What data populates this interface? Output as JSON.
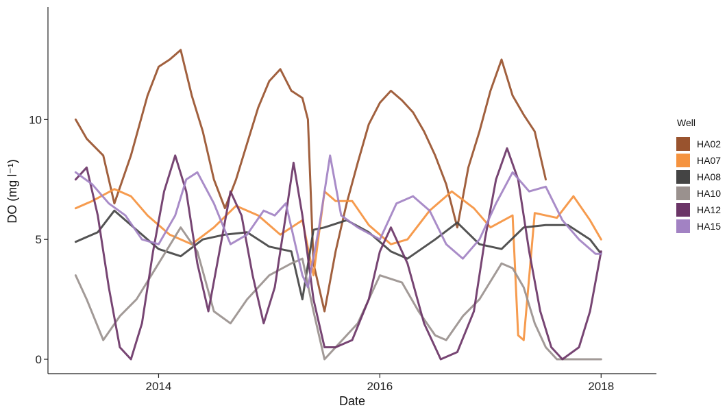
{
  "chart_data": {
    "type": "line",
    "xlabel": "Date",
    "ylabel": "DO (mg l⁻¹)",
    "xlim": [
      2013.0,
      2018.5
    ],
    "ylim": [
      -0.6,
      14.7
    ],
    "xticks": [
      2014,
      2016,
      2018
    ],
    "xtick_labels": [
      "2014",
      "2016",
      "2018"
    ],
    "yticks": [
      0,
      5,
      10
    ],
    "ytick_labels": [
      "0",
      "5",
      "10"
    ],
    "grid": false,
    "legend": {
      "title": "Well",
      "position": "right"
    },
    "series": [
      {
        "name": "HA02",
        "color": "#99532e",
        "x": [
          2013.25,
          2013.35,
          2013.5,
          2013.6,
          2013.75,
          2013.9,
          2014.0,
          2014.1,
          2014.2,
          2014.3,
          2014.4,
          2014.5,
          2014.6,
          2014.7,
          2014.8,
          2014.9,
          2015.0,
          2015.1,
          2015.2,
          2015.3,
          2015.35,
          2015.4,
          2015.5,
          2015.6,
          2015.7,
          2015.8,
          2015.9,
          2016.0,
          2016.1,
          2016.2,
          2016.3,
          2016.4,
          2016.5,
          2016.6,
          2016.7,
          2016.8,
          2016.9,
          2017.0,
          2017.1,
          2017.2,
          2017.3,
          2017.4,
          2017.5
        ],
        "y": [
          10.0,
          9.2,
          8.5,
          6.5,
          8.5,
          11.0,
          12.2,
          12.5,
          12.9,
          11.0,
          9.5,
          7.5,
          6.3,
          7.5,
          9.0,
          10.5,
          11.6,
          12.1,
          11.2,
          10.9,
          10.0,
          4.0,
          2.0,
          4.5,
          6.5,
          8.2,
          9.8,
          10.7,
          11.2,
          10.8,
          10.3,
          9.5,
          8.5,
          7.3,
          5.5,
          8.0,
          9.5,
          11.2,
          12.5,
          11.0,
          10.2,
          9.5,
          7.5
        ]
      },
      {
        "name": "HA07",
        "color": "#f5933f",
        "x": [
          2013.25,
          2013.4,
          2013.6,
          2013.75,
          2013.9,
          2014.1,
          2014.3,
          2014.5,
          2014.7,
          2014.9,
          2015.1,
          2015.2,
          2015.3,
          2015.4,
          2015.5,
          2015.6,
          2015.75,
          2015.9,
          2016.1,
          2016.25,
          2016.45,
          2016.65,
          2016.85,
          2017.0,
          2017.2,
          2017.25,
          2017.3,
          2017.4,
          2017.5,
          2017.6,
          2017.75,
          2017.9,
          2018.0
        ],
        "y": [
          6.3,
          6.6,
          7.1,
          6.8,
          6.0,
          5.2,
          4.8,
          5.5,
          6.4,
          6.0,
          5.2,
          5.5,
          5.8,
          3.5,
          7.0,
          6.6,
          6.6,
          5.6,
          4.8,
          5.0,
          6.2,
          7.0,
          6.3,
          5.5,
          6.0,
          1.0,
          0.8,
          6.1,
          6.0,
          5.9,
          6.8,
          5.8,
          5.0
        ]
      },
      {
        "name": "HA08",
        "color": "#444444",
        "x": [
          2013.25,
          2013.45,
          2013.6,
          2013.8,
          2014.0,
          2014.2,
          2014.4,
          2014.6,
          2014.8,
          2015.0,
          2015.2,
          2015.3,
          2015.4,
          2015.5,
          2015.7,
          2015.9,
          2016.1,
          2016.25,
          2016.5,
          2016.7,
          2016.9,
          2017.1,
          2017.3,
          2017.5,
          2017.7,
          2017.9,
          2018.0
        ],
        "y": [
          4.9,
          5.3,
          6.2,
          5.4,
          4.6,
          4.3,
          5.0,
          5.2,
          5.3,
          4.7,
          4.5,
          2.5,
          5.4,
          5.5,
          5.8,
          5.3,
          4.5,
          4.2,
          5.0,
          5.7,
          4.8,
          4.6,
          5.5,
          5.6,
          5.6,
          5.0,
          4.4
        ]
      },
      {
        "name": "HA10",
        "color": "#9a918e",
        "x": [
          2013.25,
          2013.35,
          2013.5,
          2013.65,
          2013.8,
          2014.0,
          2014.2,
          2014.35,
          2014.5,
          2014.65,
          2014.8,
          2015.0,
          2015.2,
          2015.3,
          2015.4,
          2015.5,
          2015.6,
          2015.8,
          2016.0,
          2016.2,
          2016.35,
          2016.5,
          2016.6,
          2016.75,
          2016.9,
          2017.1,
          2017.2,
          2017.3,
          2017.4,
          2017.5,
          2017.6,
          2017.75,
          2017.9,
          2018.0
        ],
        "y": [
          3.5,
          2.5,
          0.8,
          1.8,
          2.5,
          4.0,
          5.5,
          4.5,
          2.0,
          1.5,
          2.5,
          3.5,
          4.0,
          4.2,
          2.0,
          0.0,
          0.5,
          1.5,
          3.5,
          3.2,
          2.0,
          1.0,
          0.8,
          1.8,
          2.5,
          4.0,
          3.8,
          3.0,
          1.5,
          0.5,
          0.0,
          0.0,
          0.0,
          0.0
        ]
      },
      {
        "name": "HA12",
        "color": "#6b3567",
        "x": [
          2013.25,
          2013.35,
          2013.45,
          2013.55,
          2013.65,
          2013.75,
          2013.85,
          2013.95,
          2014.05,
          2014.15,
          2014.25,
          2014.35,
          2014.45,
          2014.55,
          2014.65,
          2014.75,
          2014.85,
          2014.95,
          2015.05,
          2015.15,
          2015.22,
          2015.3,
          2015.4,
          2015.5,
          2015.6,
          2015.75,
          2015.9,
          2016.0,
          2016.1,
          2016.25,
          2016.4,
          2016.55,
          2016.7,
          2016.85,
          2016.95,
          2017.05,
          2017.15,
          2017.25,
          2017.35,
          2017.45,
          2017.55,
          2017.65,
          2017.8,
          2017.9,
          2018.0
        ],
        "y": [
          7.5,
          8.0,
          6.0,
          3.0,
          0.5,
          0.0,
          1.5,
          4.5,
          7.0,
          8.5,
          7.0,
          4.0,
          2.0,
          4.5,
          7.0,
          6.0,
          3.5,
          1.5,
          3.0,
          6.0,
          8.2,
          6.0,
          2.5,
          0.5,
          0.5,
          0.8,
          2.5,
          4.5,
          5.5,
          4.0,
          1.5,
          0.0,
          0.3,
          2.0,
          5.0,
          7.5,
          8.8,
          7.5,
          4.5,
          2.0,
          0.5,
          0.0,
          0.5,
          2.0,
          4.5
        ]
      },
      {
        "name": "HA15",
        "color": "#a282c3",
        "x": [
          2013.25,
          2013.4,
          2013.55,
          2013.7,
          2013.85,
          2014.0,
          2014.15,
          2014.25,
          2014.35,
          2014.5,
          2014.65,
          2014.8,
          2014.95,
          2015.05,
          2015.15,
          2015.25,
          2015.3,
          2015.35,
          2015.45,
          2015.55,
          2015.65,
          2015.8,
          2016.0,
          2016.15,
          2016.3,
          2016.45,
          2016.6,
          2016.75,
          2016.9,
          2017.05,
          2017.2,
          2017.35,
          2017.5,
          2017.65,
          2017.8,
          2017.95,
          2018.0
        ],
        "y": [
          7.8,
          7.3,
          6.5,
          6.0,
          5.0,
          4.8,
          6.0,
          7.5,
          7.8,
          6.5,
          4.8,
          5.2,
          6.2,
          6.0,
          6.5,
          4.5,
          3.5,
          3.0,
          5.5,
          8.5,
          6.0,
          5.5,
          5.0,
          6.5,
          6.8,
          6.2,
          4.8,
          4.2,
          5.0,
          6.5,
          7.8,
          7.0,
          7.2,
          5.8,
          5.0,
          4.4,
          4.4
        ]
      }
    ]
  }
}
